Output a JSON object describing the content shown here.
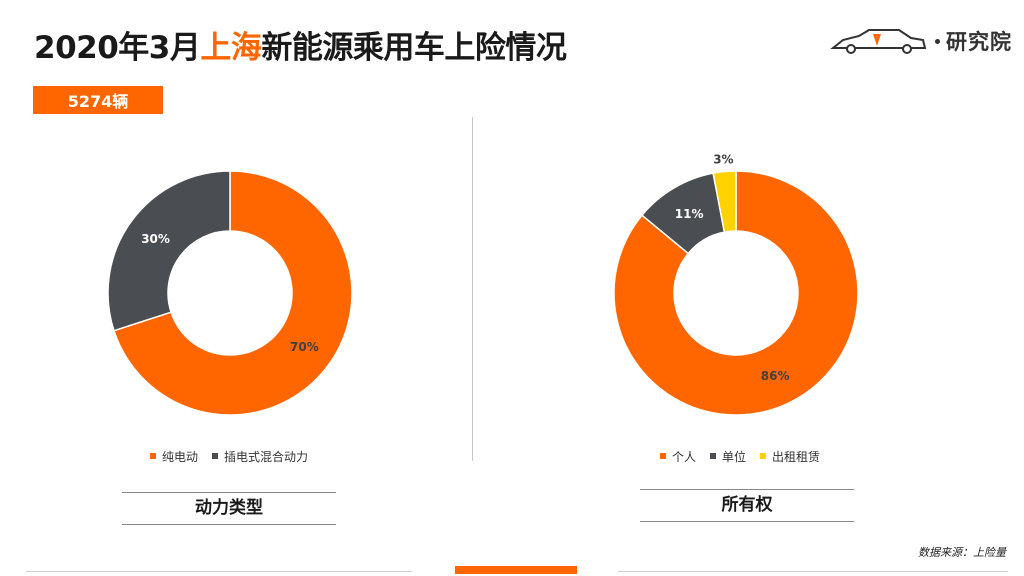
{
  "header": {
    "title_prefix": "2020年3月",
    "title_highlight": "上海",
    "title_suffix": "新能源乘用车上险情况",
    "total_badge": "5274辆",
    "logo_text": "研究院"
  },
  "colors": {
    "accent": "#ff6600",
    "dark": "#4a4e52",
    "yellow": "#ffd200"
  },
  "chart_data": [
    {
      "type": "pie",
      "variant": "donut",
      "caption": "动力类型",
      "categories": [
        "纯电动",
        "插电式混合动力"
      ],
      "values": [
        70,
        30
      ],
      "labels": [
        "70%",
        "30%"
      ],
      "colors": [
        "#ff6600",
        "#4a4e52"
      ],
      "legend_position": "bottom"
    },
    {
      "type": "pie",
      "variant": "donut",
      "caption": "所有权",
      "categories": [
        "个人",
        "单位",
        "出租租赁"
      ],
      "values": [
        86,
        11,
        3
      ],
      "labels": [
        "86%",
        "11%",
        "3%"
      ],
      "colors": [
        "#ff6600",
        "#4a4e52",
        "#ffd200"
      ],
      "legend_position": "bottom"
    }
  ],
  "footer": {
    "source": "数据来源：上险量"
  }
}
